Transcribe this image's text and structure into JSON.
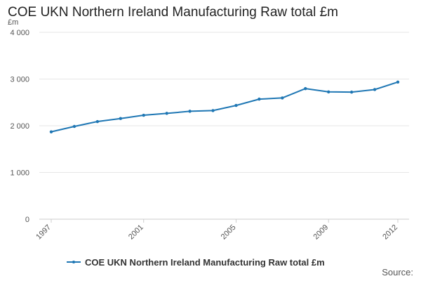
{
  "chart_data": {
    "type": "line",
    "title": "COE UKN Northern Ireland Manufacturing Raw total £m",
    "ylabel": "£m",
    "xlabel": "",
    "ylim": [
      0,
      4000
    ],
    "xlim": [
      1997,
      2012
    ],
    "yticks": [
      0,
      1000,
      2000,
      3000,
      4000
    ],
    "ytick_labels": [
      "0",
      "1 000",
      "2 000",
      "3 000",
      "4 000"
    ],
    "xticks": [
      1997,
      2001,
      2005,
      2009,
      2012
    ],
    "xtick_labels": [
      "1997",
      "2001",
      "2005",
      "2009",
      "2012"
    ],
    "grid": true,
    "legend_position": "bottom",
    "series": [
      {
        "name": "COE UKN Northern Ireland Manufacturing Raw total £m",
        "color": "#1f77b4",
        "x": [
          1997,
          1998,
          1999,
          2000,
          2001,
          2002,
          2003,
          2004,
          2005,
          2006,
          2007,
          2008,
          2009,
          2010,
          2011,
          2012
        ],
        "values": [
          1870,
          1985,
          2090,
          2155,
          2225,
          2265,
          2310,
          2325,
          2435,
          2570,
          2595,
          2795,
          2725,
          2720,
          2775,
          2935
        ]
      }
    ]
  },
  "footer": {
    "source": "Source:"
  }
}
